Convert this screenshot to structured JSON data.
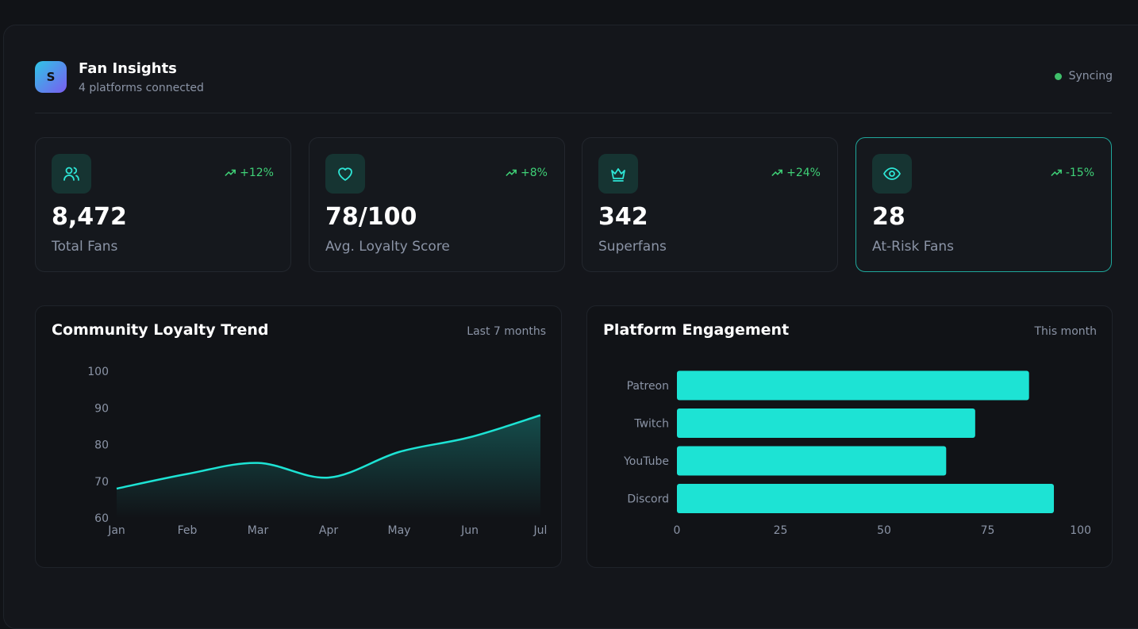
{
  "header": {
    "logo": "S",
    "title": "Fan Insights",
    "subtitle": "4 platforms connected",
    "status": "Syncing"
  },
  "stats": [
    {
      "change": "+12%",
      "value": "8,472",
      "label": "Total Fans"
    },
    {
      "change": "+8%",
      "value": "78/100",
      "label": "Avg. Loyalty Score"
    },
    {
      "change": "+24%",
      "value": "342",
      "label": "Superfans"
    },
    {
      "change": "-15%",
      "value": "28",
      "label": "At-Risk Fans"
    }
  ],
  "chart_data": [
    {
      "type": "line",
      "title": "Community Loyalty Trend",
      "subtitle": "Last 7 months",
      "categories": [
        "Jan",
        "Feb",
        "Mar",
        "Apr",
        "May",
        "Jun",
        "Jul"
      ],
      "values": [
        68,
        72,
        75,
        71,
        78,
        82,
        88
      ],
      "color": "#1de3d4",
      "ylim": [
        60,
        100
      ],
      "yticks": [
        60,
        70,
        80,
        90,
        100
      ]
    },
    {
      "type": "hbar",
      "title": "Platform Engagement",
      "subtitle": "This month",
      "categories": [
        "Patreon",
        "Twitch",
        "YouTube",
        "Discord"
      ],
      "values": [
        85,
        72,
        65,
        91
      ],
      "color": "#1de3d4",
      "xlim": [
        0,
        100
      ],
      "xticks": [
        0,
        25,
        50,
        75,
        100
      ]
    }
  ]
}
